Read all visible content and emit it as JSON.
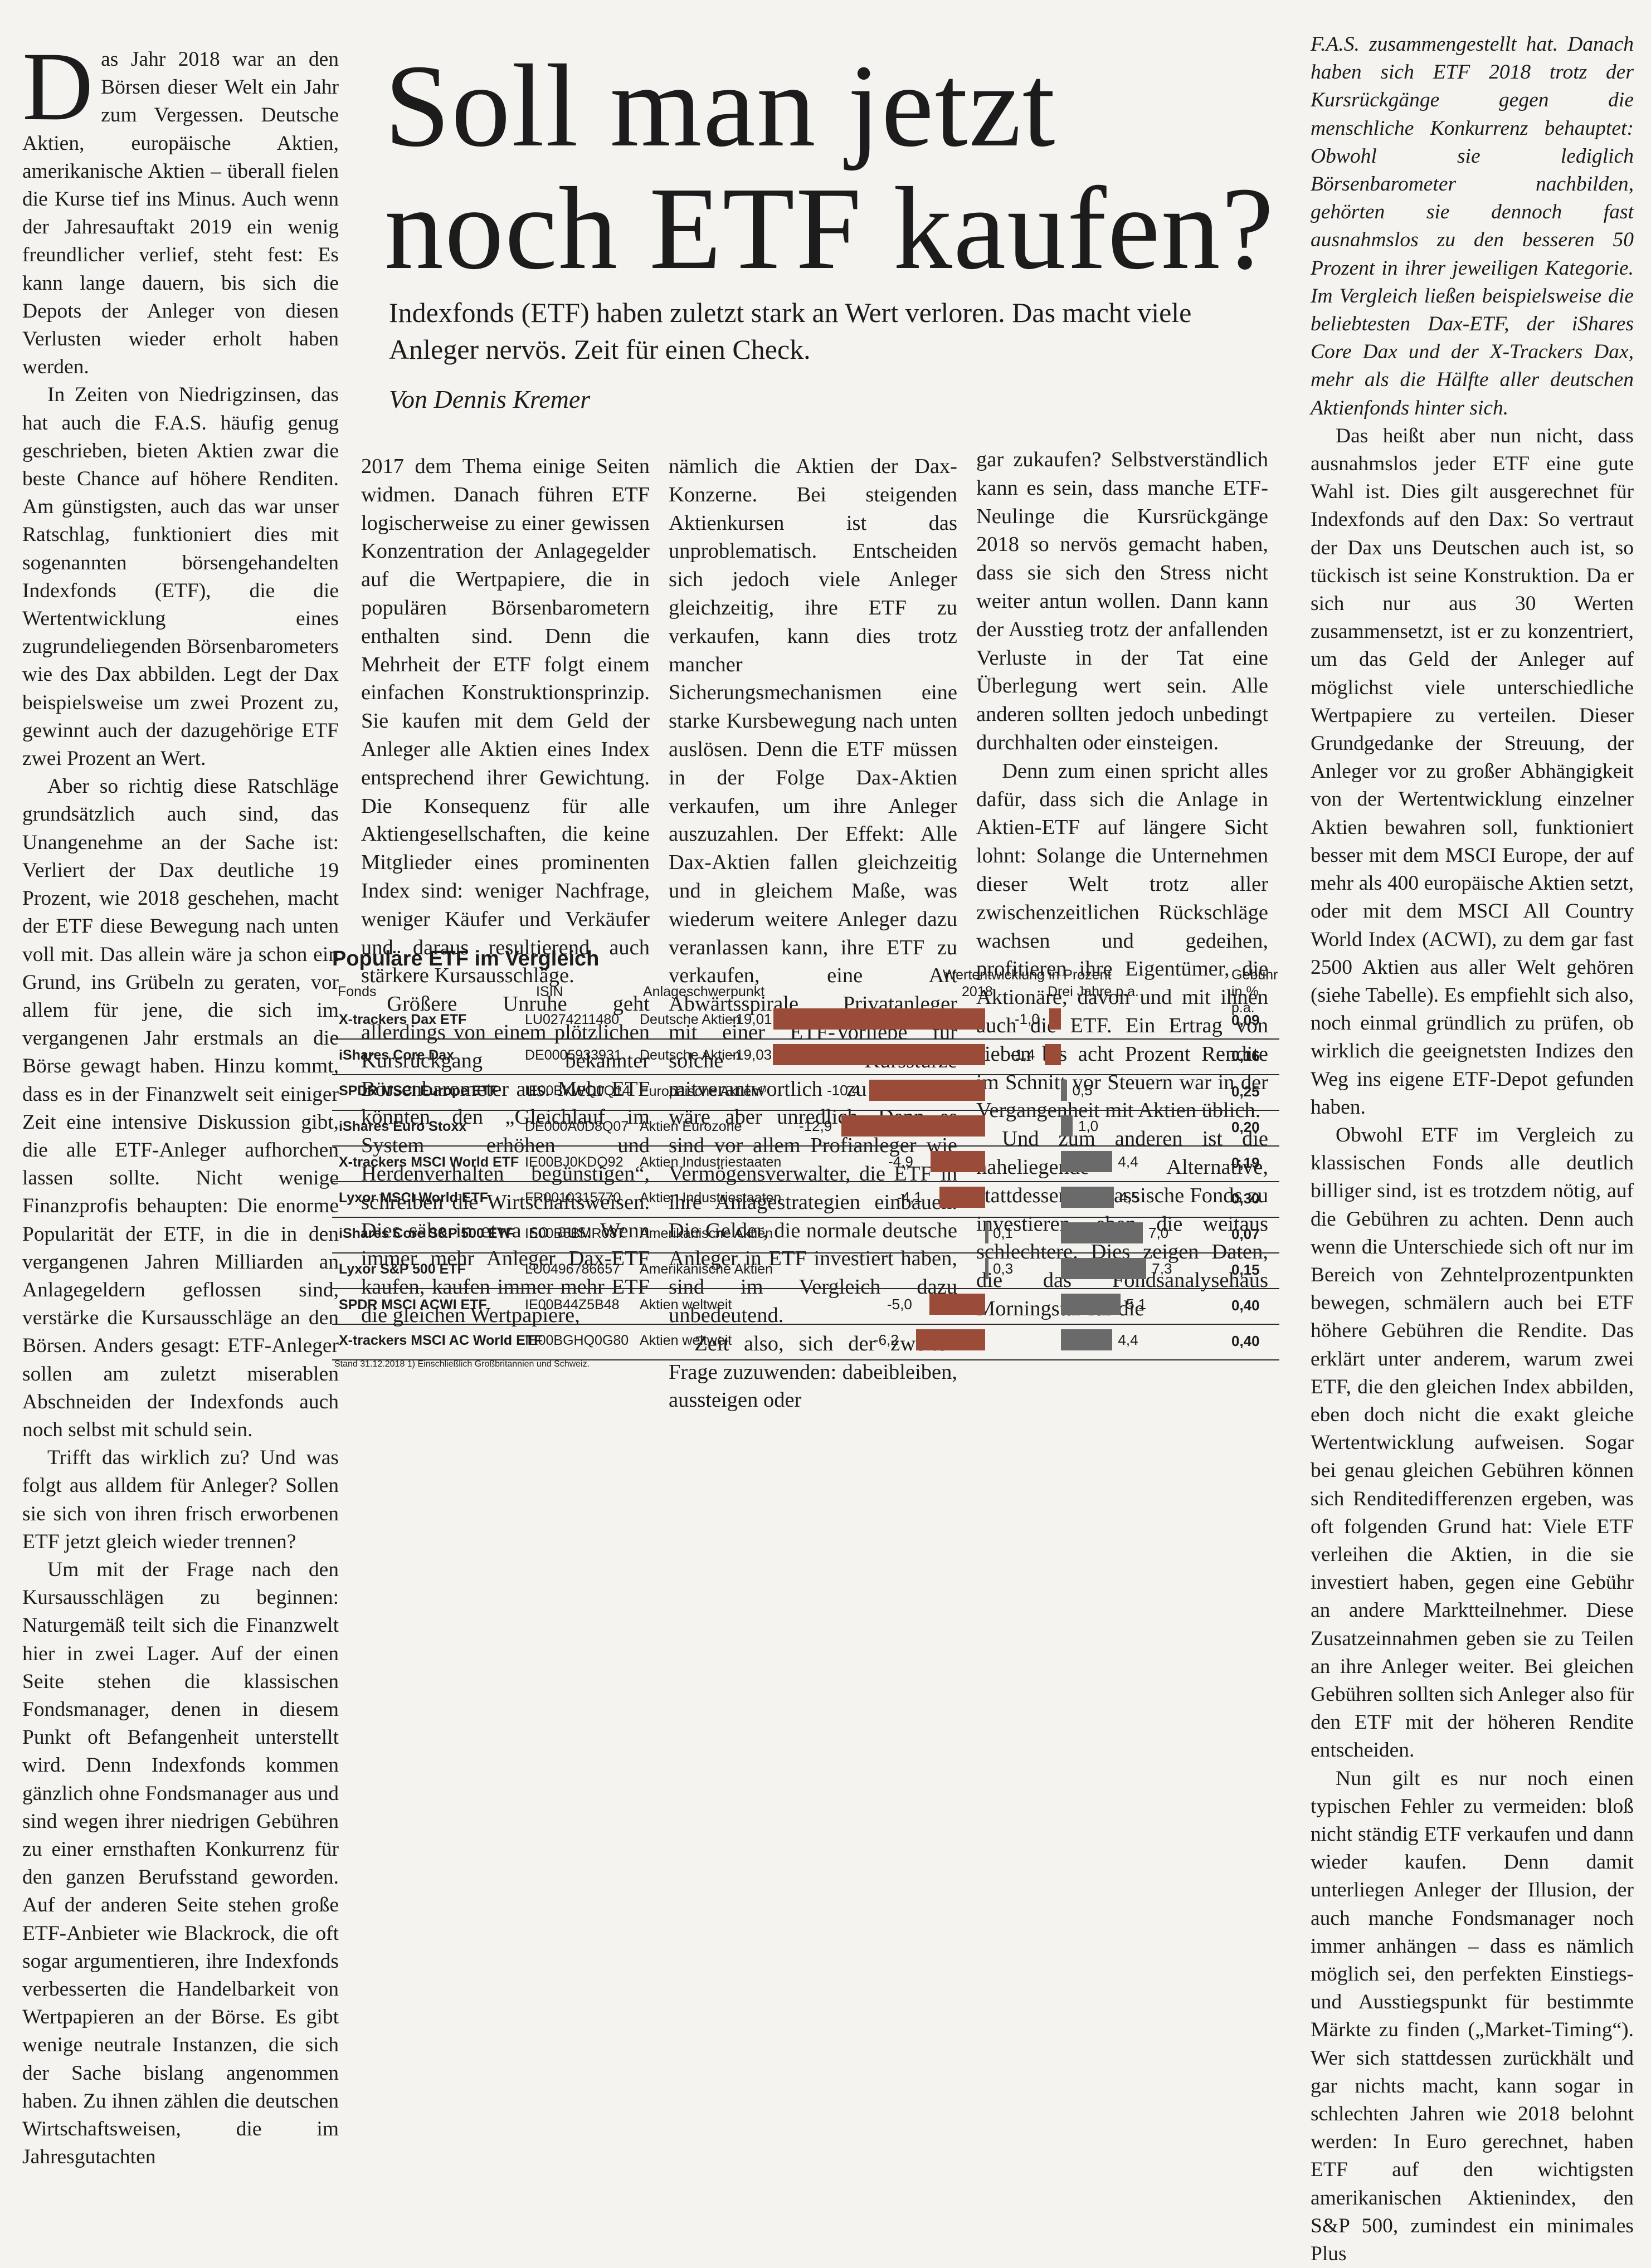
{
  "article": {
    "headline_line1": "Soll man jetzt",
    "headline_line2": "noch ETF kaufen?",
    "subhead": "Indexfonds (ETF) haben zuletzt stark an Wert verloren. Das macht viele Anleger nervös. Zeit für einen Check.",
    "byline": "Von Dennis Kremer",
    "col1": {
      "dropcap": "D",
      "p1": "as Jahr 2018 war an den Börsen dieser Welt ein Jahr zum Vergessen. Deutsche Aktien, europäische Aktien, amerikanische Aktien – überall fielen die Kurse tief ins Minus. Auch wenn der Jahresauftakt 2019 ein wenig freundlicher verlief, steht fest: Es kann lange dauern, bis sich die Depots der Anleger von diesen Verlusten wieder erholt haben werden.",
      "p2": "In Zeiten von Niedrigzinsen, das hat auch die F.A.S. häufig genug geschrieben, bieten Aktien zwar die beste Chance auf höhere Renditen. Am günstigsten, auch das war unser Ratschlag, funktioniert dies mit sogenannten börsengehandelten Indexfonds (ETF), die die Wertentwicklung eines zugrundeliegenden Börsenbarometers wie des Dax abbilden. Legt der Dax beispielsweise um zwei Prozent zu, gewinnt auch der dazugehörige ETF zwei Prozent an Wert.",
      "p3": "Aber so richtig diese Ratschläge grundsätzlich auch sind, das Unangenehme an der Sache ist: Verliert der Dax deutliche 19 Prozent, wie 2018 geschehen, macht der ETF diese Bewegung nach unten voll mit. Das allein wäre ja schon ein Grund, ins Grübeln zu geraten, vor allem für jene, die sich im vergangenen Jahr erstmals an die Börse gewagt haben. Hinzu kommt, dass es in der Finanzwelt seit einiger Zeit eine intensive Diskussion gibt, die alle ETF-Anleger aufhorchen lassen sollte. Nicht wenige Finanzprofis behaupten: Die enorme Popularität der ETF, in die in den vergangenen Jahren Milliarden an Anlagegeldern geflossen sind, verstärke die Kursausschläge an den Börsen. Anders gesagt: ETF-Anleger sollen am zuletzt miserablen Abschneiden der Indexfonds auch noch selbst mit schuld sein.",
      "p4": "Trifft das wirklich zu? Und was folgt aus alldem für Anleger? Sollen sie sich von ihren frisch erworbenen ETF jetzt gleich wieder trennen?",
      "p5": "Um mit der Frage nach den Kursausschlägen zu beginnen: Naturgemäß teilt sich die Finanzwelt hier in zwei Lager. Auf der einen Seite stehen die klassischen Fondsmanager, denen in diesem Punkt oft Befangenheit unterstellt wird. Denn Indexfonds kommen gänzlich ohne Fondsmanager aus und sind wegen ihrer niedrigen Gebühren zu einer ernsthaften Konkurrenz für den ganzen Berufsstand geworden. Auf der anderen Seite stehen große ETF-Anbieter wie Blackrock, die oft sogar argumentieren, ihre Indexfonds verbesserten die Handelbarkeit von Wertpapieren an der Börse. Es gibt wenige neutrale Instanzen, die sich der Sache bislang angenommen haben. Zu ihnen zählen die deutschen Wirtschaftsweisen, die im Jahresgutachten"
    },
    "col2": {
      "p1": "2017 dem Thema einige Seiten widmen. Danach führen ETF logischerweise zu einer gewissen Konzentration der Anlagegelder auf die Wertpapiere, die in populären Börsenbarometern enthalten sind. Denn die Mehrheit der ETF folgt einem einfachen Konstruktionsprinzip. Sie kaufen mit dem Geld der Anleger alle Aktien eines Index entsprechend ihrer Gewichtung. Die Konsequenz für alle Aktiengesellschaften, die keine Mitglieder eines prominenten Index sind: weniger Nachfrage, weniger Käufer und Verkäufer und daraus resultierend auch stärkere Kursausschläge.",
      "p2": "Größere Unruhe geht allerdings von einem plötzlichen Kursrückgang bekannter Börsenbarometer aus. Mehr ETF könnten den „Gleichlauf im System erhöhen und Herdenverhalten begünstigen“, schreiben die Wirtschaftsweisen. Dies sähe in etwa so aus: Wenn immer mehr Anleger Dax-ETF kaufen, kaufen immer mehr ETF die gleichen Wertpapiere,"
    },
    "col3": {
      "p1": "nämlich die Aktien der Dax-Konzerne. Bei steigenden Aktienkursen ist das unproblematisch. Entscheiden sich jedoch viele Anleger gleichzeitig, ihre ETF zu verkaufen, kann dies trotz mancher Sicherungsmechanismen eine starke Kursbewegung nach unten auslösen. Denn die ETF müssen in der Folge Dax-Aktien verkaufen, um ihre Anleger auszuzahlen. Der Effekt: Alle Dax-Aktien fallen gleichzeitig und in gleichem Maße, was wiederum weitere Anleger dazu veranlassen kann, ihre ETF zu verkaufen, eine Art Abwärtsspirale. Privatanleger mit einer ETF-Vorliebe für solche Kursstürze mitverantwortlich zu machen wäre aber unredlich. Denn es sind vor allem Profianleger wie Vermögensverwalter, die ETF in ihre Anlagestrategien einbauen. Die Gelder, die normale deutsche Anleger in ETF investiert haben, sind im Vergleich dazu unbedeutend.",
      "p2": "Zeit also, sich der zweiten Frage zuzuwenden: dabeibleiben, aussteigen oder"
    },
    "col4": {
      "p1": "gar zukaufen? Selbstverständlich kann es sein, dass manche ETF-Neulinge die Kursrückgänge 2018 so nervös gemacht haben, dass sie sich den Stress nicht weiter antun wollen. Dann kann der Ausstieg trotz der anfallenden Verluste in der Tat eine Überlegung wert sein. Alle anderen sollten jedoch unbedingt durchhalten oder einsteigen.",
      "p2": "Denn zum einen spricht alles dafür, dass sich die Anlage in Aktien-ETF auf längere Sicht lohnt: Solange die Unternehmen dieser Welt trotz aller zwischenzeitlichen Rückschläge wachsen und gedeihen, profitieren ihre Eigentümer, die Aktionäre, davon und mit ihnen auch die ETF. Ein Ertrag von sieben bis acht Prozent Rendite im Schnitt vor Steuern war in der Vergangenheit mit Aktien üblich.",
      "p3": "Und zum anderen ist die naheliegende Alternative, stattdessen in klassische Fonds zu investieren, eben die weitaus schlechtere. Dies zeigen Daten, die das Fondsanalysehaus Morningstar für die"
    },
    "col5": {
      "p1": "F.A.S. zusammengestellt hat. Danach haben sich ETF 2018 trotz der Kursrückgänge gegen die menschliche Konkurrenz behauptet: Obwohl sie lediglich Börsenbarometer nachbilden, gehörten sie dennoch fast ausnahmslos zu den besseren 50 Prozent in ihrer jeweiligen Kategorie. Im Vergleich ließen beispielsweise die beliebtesten Dax-ETF, der iShares Core Dax und der X-Trackers Dax, mehr als die Hälfte aller deutschen Aktienfonds hinter sich.",
      "p2": "Das heißt aber nun nicht, dass ausnahmslos jeder ETF eine gute Wahl ist. Dies gilt ausgerechnet für Indexfonds auf den Dax: So vertraut der Dax uns Deutschen auch ist, so tückisch ist seine Konstruktion. Da er sich nur aus 30 Werten zusammensetzt, ist er zu konzentriert, um das Geld der Anleger auf möglichst viele unterschiedliche Wertpapiere zu verteilen. Dieser Grundgedanke der Streuung, der Anleger vor zu großer Abhängigkeit von der Wertentwicklung einzelner Aktien bewahren soll, funktioniert besser mit dem MSCI Europe, der auf mehr als 400 europäische Aktien setzt, oder mit dem MSCI All Country World Index (ACWI), zu dem gar fast 2500 Aktien aus aller Welt gehören (siehe Tabelle). Es empfiehlt sich also, noch einmal gründlich zu prüfen, ob wirklich die geeignetsten Indizes den Weg ins eigene ETF-Depot gefunden haben.",
      "p3": "Obwohl ETF im Vergleich zu klassischen Fonds alle deutlich billiger sind, ist es trotzdem nötig, auf die Gebühren zu achten. Denn auch wenn die Unterschiede sich oft nur im Bereich von Zehntelprozentpunkten bewegen, schmälern auch bei ETF höhere Gebühren die Rendite. Das erklärt unter anderem, warum zwei ETF, die den gleichen Index abbilden, eben doch nicht die exakt gleiche Wertentwicklung aufweisen. Sogar bei genau gleichen Gebühren können sich Renditedifferenzen ergeben, was oft folgenden Grund hat: Viele ETF verleihen die Aktien, in die sie investiert haben, gegen eine Gebühr an andere Marktteilnehmer. Diese Zusatzeinnahmen geben sie zu Teilen an ihre Anleger weiter. Bei gleichen Gebühren sollten sich Anleger also für den ETF mit der höheren Rendite entscheiden.",
      "p4": "Nun gilt es nur noch einen typischen Fehler zu vermeiden: bloß nicht ständig ETF verkaufen und dann wieder kaufen. Denn damit unterliegen Anleger der Illusion, der auch manche Fondsmanager noch immer anhängen – dass es nämlich möglich sei, den perfekten Einstiegs- und Ausstiegspunkt für bestimmte Märkte zu finden („Market-Timing“). Wer sich stattdessen zurückhält und gar nichts macht, kann sogar in schlechten Jahren wie 2018 belohnt werden: In Euro gerechnet, haben ETF auf den wichtigsten amerikanischen Aktienindex, den S&P 500, zumindest ein minimales Plus"
    }
  },
  "table": {
    "title": "Populäre ETF im Vergleich",
    "group_header": "Wertentwicklung in Prozent",
    "col_fonds": "Fonds",
    "col_isin": "ISIN",
    "col_focus": "Anlageschwerpunkt",
    "col_2018": "2018",
    "col_3y": "Drei Jahre p.a.",
    "col_fee_1": "Gebühr",
    "col_fee_2": "in % p.a.",
    "footnote": "Stand 31.12.2018   1) Einschließlich Großbritannien und Schweiz.",
    "neg_color": "#9a4c38",
    "pos_color": "#6a6a6a",
    "rows": [
      {
        "fund": "X-trackers Dax ETF",
        "isin": "LU0274211480",
        "focus": "Deutsche Aktien",
        "y2018": "-19,01",
        "y3": "-1,0",
        "fee": "0,09",
        "v2018": -19.01,
        "v3": -1.0
      },
      {
        "fund": "iShares Core Dax",
        "isin": "DE0005933931",
        "focus": "Deutsche Aktien",
        "y2018": "-19,03",
        "y3": "-1,4",
        "fee": "0,16",
        "v2018": -19.03,
        "v3": -1.4
      },
      {
        "fund": "SPDR MSCI Europe ETF",
        "isin": "IE00BKWQ0Q14",
        "focus": "Europäische Aktien¹⁾",
        "y2018": "-10,4",
        "y3": "0,5",
        "fee": "0,25",
        "v2018": -10.4,
        "v3": 0.5
      },
      {
        "fund": "iShares Euro Stoxx",
        "isin": "DE000A0D8Q07",
        "focus": "Aktien Eurozone",
        "y2018": "-12,9",
        "y3": "1,0",
        "fee": "0,20",
        "v2018": -12.9,
        "v3": 1.0
      },
      {
        "fund": "X-trackers MSCI World ETF",
        "isin": "IE00BJ0KDQ92",
        "focus": "Aktien Industriestaaten",
        "y2018": "-4,9",
        "y3": "4,4",
        "fee": "0,19",
        "v2018": -4.9,
        "v3": 4.4
      },
      {
        "fund": "Lyxor MSCI World ETF",
        "isin": "FR0010315770",
        "focus": "Aktien Industriestaaten",
        "y2018": "-4,1",
        "y3": "4,5",
        "fee": "0,30",
        "v2018": -4.1,
        "v3": 4.5
      },
      {
        "fund": "iShares Core S&P 500 ETF",
        "isin": "IE00B5BMR087",
        "focus": "Amerikanische Aktien",
        "y2018": "0,1",
        "y3": "7,0",
        "fee": "0,07",
        "v2018": 0.1,
        "v3": 7.0
      },
      {
        "fund": "Lyxor S&P 500 ETF",
        "isin": "LU0496786657",
        "focus": "Amerikanische Aktien",
        "y2018": "0,3",
        "y3": "7,3",
        "fee": "0,15",
        "v2018": 0.3,
        "v3": 7.3
      },
      {
        "fund": "SPDR MSCI ACWI ETF",
        "isin": "IE00B44Z5B48",
        "focus": "Aktien weltweit",
        "y2018": "-5,0",
        "y3": "5,1",
        "fee": "0,40",
        "v2018": -5.0,
        "v3": 5.1
      },
      {
        "fund": "X-trackers MSCI AC World ETF",
        "isin": "IE00BGHQ0G80",
        "focus": "Aktien weltweit",
        "y2018": "-6,2",
        "y3": "4,4",
        "fee": "0,40",
        "v2018": -6.2,
        "v3": 4.4
      }
    ]
  }
}
